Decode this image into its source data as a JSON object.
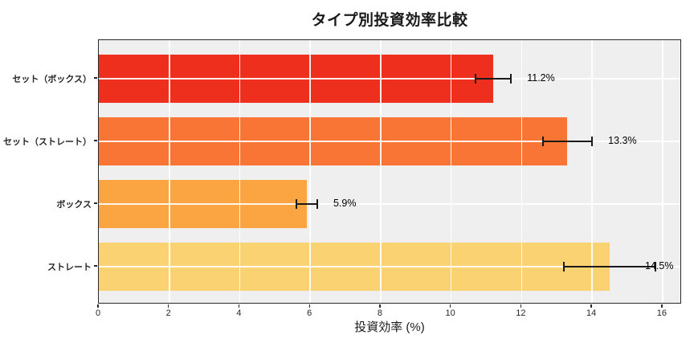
{
  "chart_data": {
    "type": "bar",
    "orientation": "horizontal",
    "title": "タイプ別投資効率比較",
    "xlabel": "投資効率 (%)",
    "categories": [
      "セット（ボックス）",
      "セット（ストレート）",
      "ボックス",
      "ストレート"
    ],
    "values": [
      11.2,
      13.3,
      5.9,
      14.5
    ],
    "errors": [
      0.5,
      0.7,
      0.3,
      1.3
    ],
    "value_labels": [
      "11.2%",
      "13.3%",
      "5.9%",
      "14.5%"
    ],
    "bar_colors": [
      "#EE2F1E",
      "#F97536",
      "#FAA542",
      "#FBD271"
    ],
    "xlim": [
      0,
      16.55
    ],
    "xticks": [
      0,
      2,
      4,
      6,
      8,
      10,
      12,
      14,
      16
    ],
    "grid": true,
    "legend": "none",
    "plot_background": "#EFEFEF",
    "grid_color": "#FFFFFF",
    "spine_color": "#2A2A2A",
    "errorbar_color": "#1A1A1A",
    "label_color": "#000000"
  }
}
